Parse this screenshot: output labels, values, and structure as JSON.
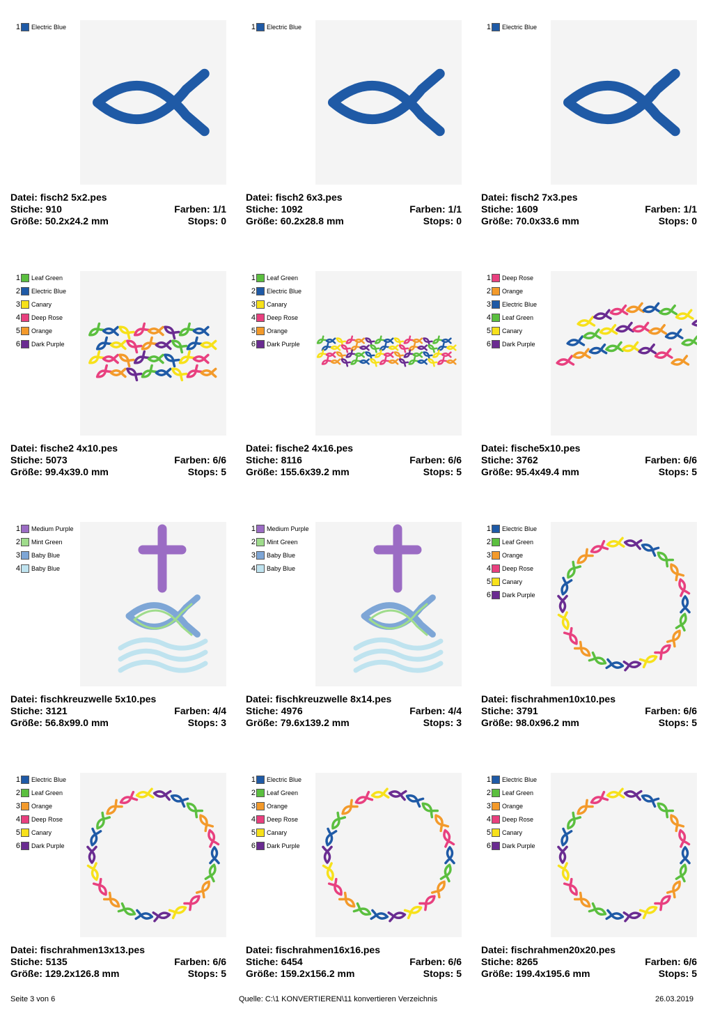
{
  "labels": {
    "file": "Datei: ",
    "stitches": "Stiche: ",
    "size": "Größe: ",
    "colors": "Farben: ",
    "stops": "Stops: "
  },
  "designs": [
    {
      "file": "fisch2 5x2.pes",
      "stitches": "910",
      "size": "50.2x24.2 mm",
      "colors_count": "1/1",
      "stops": "0",
      "palette": [
        {
          "num": "1",
          "name": "Electric Blue",
          "color": "#1f5aa6"
        }
      ],
      "preview_icon": "single-fish-icon"
    },
    {
      "file": "fisch2 6x3.pes",
      "stitches": "1092",
      "size": "60.2x28.8 mm",
      "colors_count": "1/1",
      "stops": "0",
      "palette": [
        {
          "num": "1",
          "name": "Electric Blue",
          "color": "#1f5aa6"
        }
      ],
      "preview_icon": "single-fish-icon"
    },
    {
      "file": "fisch2 7x3.pes",
      "stitches": "1609",
      "size": "70.0x33.6 mm",
      "colors_count": "1/1",
      "stops": "0",
      "palette": [
        {
          "num": "1",
          "name": "Electric Blue",
          "color": "#1f5aa6"
        }
      ],
      "preview_icon": "single-fish-icon"
    },
    {
      "file": "fische2 4x10.pes",
      "stitches": "5073",
      "size": "99.4x39.0 mm",
      "colors_count": "6/6",
      "stops": "5",
      "palette": [
        {
          "num": "1",
          "name": "Leaf Green",
          "color": "#5bbf3f"
        },
        {
          "num": "2",
          "name": "Electric Blue",
          "color": "#1f5aa6"
        },
        {
          "num": "3",
          "name": "Canary",
          "color": "#f7e11b"
        },
        {
          "num": "4",
          "name": "Deep Rose",
          "color": "#e8407f"
        },
        {
          "num": "5",
          "name": "Orange",
          "color": "#f39a2b"
        },
        {
          "num": "6",
          "name": "Dark Purple",
          "color": "#6a2c91"
        }
      ],
      "preview_icon": "fish-band-icon"
    },
    {
      "file": "fische2 4x16.pes",
      "stitches": "8116",
      "size": "155.6x39.2 mm",
      "colors_count": "6/6",
      "stops": "5",
      "palette": [
        {
          "num": "1",
          "name": "Leaf Green",
          "color": "#5bbf3f"
        },
        {
          "num": "2",
          "name": "Electric Blue",
          "color": "#1f5aa6"
        },
        {
          "num": "3",
          "name": "Canary",
          "color": "#f7e11b"
        },
        {
          "num": "4",
          "name": "Deep Rose",
          "color": "#e8407f"
        },
        {
          "num": "5",
          "name": "Orange",
          "color": "#f39a2b"
        },
        {
          "num": "6",
          "name": "Dark Purple",
          "color": "#6a2c91"
        }
      ],
      "preview_icon": "fish-band-narrow-icon"
    },
    {
      "file": "fische5x10.pes",
      "stitches": "3762",
      "size": "95.4x49.4 mm",
      "colors_count": "6/6",
      "stops": "5",
      "palette": [
        {
          "num": "1",
          "name": "Deep Rose",
          "color": "#e8407f"
        },
        {
          "num": "2",
          "name": "Orange",
          "color": "#f39a2b"
        },
        {
          "num": "3",
          "name": "Electric Blue",
          "color": "#1f5aa6"
        },
        {
          "num": "4",
          "name": "Leaf Green",
          "color": "#5bbf3f"
        },
        {
          "num": "5",
          "name": "Canary",
          "color": "#f7e11b"
        },
        {
          "num": "6",
          "name": "Dark Purple",
          "color": "#6a2c91"
        }
      ],
      "preview_icon": "fish-arcs-icon"
    },
    {
      "file": "fischkreuzwelle 5x10.pes",
      "stitches": "3121",
      "size": "56.8x99.0 mm",
      "colors_count": "4/4",
      "stops": "3",
      "palette": [
        {
          "num": "1",
          "name": "Medium Purple",
          "color": "#9b6cc4"
        },
        {
          "num": "2",
          "name": "Mint Green",
          "color": "#9fdc8c"
        },
        {
          "num": "3",
          "name": "Baby Blue",
          "color": "#7ea6d6"
        },
        {
          "num": "4",
          "name": "Baby Blue",
          "color": "#bfe3ef"
        }
      ],
      "preview_icon": "cross-fish-wave-icon"
    },
    {
      "file": "fischkreuzwelle 8x14.pes",
      "stitches": "4976",
      "size": "79.6x139.2 mm",
      "colors_count": "4/4",
      "stops": "3",
      "palette": [
        {
          "num": "1",
          "name": "Medium Purple",
          "color": "#9b6cc4"
        },
        {
          "num": "2",
          "name": "Mint Green",
          "color": "#9fdc8c"
        },
        {
          "num": "3",
          "name": "Baby Blue",
          "color": "#7ea6d6"
        },
        {
          "num": "4",
          "name": "Baby Blue",
          "color": "#bfe3ef"
        }
      ],
      "preview_icon": "cross-fish-wave-icon"
    },
    {
      "file": "fischrahmen10x10.pes",
      "stitches": "3791",
      "size": "98.0x96.2 mm",
      "colors_count": "6/6",
      "stops": "5",
      "palette": [
        {
          "num": "1",
          "name": "Electric Blue",
          "color": "#1f5aa6"
        },
        {
          "num": "2",
          "name": "Leaf Green",
          "color": "#5bbf3f"
        },
        {
          "num": "3",
          "name": "Orange",
          "color": "#f39a2b"
        },
        {
          "num": "4",
          "name": "Deep Rose",
          "color": "#e8407f"
        },
        {
          "num": "5",
          "name": "Canary",
          "color": "#f7e11b"
        },
        {
          "num": "6",
          "name": "Dark Purple",
          "color": "#6a2c91"
        }
      ],
      "preview_icon": "fish-ring-icon"
    },
    {
      "file": "fischrahmen13x13.pes",
      "stitches": "5135",
      "size": "129.2x126.8 mm",
      "colors_count": "6/6",
      "stops": "5",
      "palette": [
        {
          "num": "1",
          "name": "Electric Blue",
          "color": "#1f5aa6"
        },
        {
          "num": "2",
          "name": "Leaf Green",
          "color": "#5bbf3f"
        },
        {
          "num": "3",
          "name": "Orange",
          "color": "#f39a2b"
        },
        {
          "num": "4",
          "name": "Deep Rose",
          "color": "#e8407f"
        },
        {
          "num": "5",
          "name": "Canary",
          "color": "#f7e11b"
        },
        {
          "num": "6",
          "name": "Dark Purple",
          "color": "#6a2c91"
        }
      ],
      "preview_icon": "fish-ring-icon"
    },
    {
      "file": "fischrahmen16x16.pes",
      "stitches": "6454",
      "size": "159.2x156.2 mm",
      "colors_count": "6/6",
      "stops": "5",
      "palette": [
        {
          "num": "1",
          "name": "Electric Blue",
          "color": "#1f5aa6"
        },
        {
          "num": "2",
          "name": "Leaf Green",
          "color": "#5bbf3f"
        },
        {
          "num": "3",
          "name": "Orange",
          "color": "#f39a2b"
        },
        {
          "num": "4",
          "name": "Deep Rose",
          "color": "#e8407f"
        },
        {
          "num": "5",
          "name": "Canary",
          "color": "#f7e11b"
        },
        {
          "num": "6",
          "name": "Dark Purple",
          "color": "#6a2c91"
        }
      ],
      "preview_icon": "fish-ring-icon"
    },
    {
      "file": "fischrahmen20x20.pes",
      "stitches": "8265",
      "size": "199.4x195.6 mm",
      "colors_count": "6/6",
      "stops": "5",
      "palette": [
        {
          "num": "1",
          "name": "Electric Blue",
          "color": "#1f5aa6"
        },
        {
          "num": "2",
          "name": "Leaf Green",
          "color": "#5bbf3f"
        },
        {
          "num": "3",
          "name": "Orange",
          "color": "#f39a2b"
        },
        {
          "num": "4",
          "name": "Deep Rose",
          "color": "#e8407f"
        },
        {
          "num": "5",
          "name": "Canary",
          "color": "#f7e11b"
        },
        {
          "num": "6",
          "name": "Dark Purple",
          "color": "#6a2c91"
        }
      ],
      "preview_icon": "fish-ring-icon"
    }
  ],
  "footer": {
    "page": "Seite 3 von 6",
    "source": "Quelle: C:\\1 KONVERTIEREN\\11 konvertieren Verzeichnis",
    "date": "26.03.2019"
  }
}
